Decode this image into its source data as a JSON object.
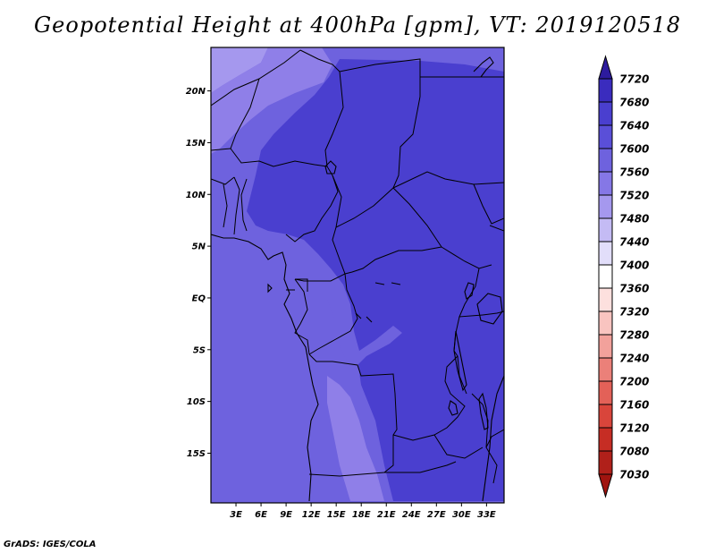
{
  "title": "Geopotential Height at 400hPa [gpm], VT: 2019120518",
  "credit": "GrADS: IGES/COLA",
  "map": {
    "lat_labels": [
      {
        "label": "20N",
        "lat": 20
      },
      {
        "label": "15N",
        "lat": 15
      },
      {
        "label": "10N",
        "lat": 10
      },
      {
        "label": "5N",
        "lat": 5
      },
      {
        "label": "EQ",
        "lat": 0
      },
      {
        "label": "5S",
        "lat": -5
      },
      {
        "label": "10S",
        "lat": -10
      },
      {
        "label": "15S",
        "lat": -15
      }
    ],
    "lon_labels": [
      {
        "label": "3E",
        "lon": 3
      },
      {
        "label": "6E",
        "lon": 6
      },
      {
        "label": "9E",
        "lon": 9
      },
      {
        "label": "12E",
        "lon": 12
      },
      {
        "label": "15E",
        "lon": 15
      },
      {
        "label": "18E",
        "lon": 18
      },
      {
        "label": "21E",
        "lon": 21
      },
      {
        "label": "24E",
        "lon": 24
      },
      {
        "label": "27E",
        "lon": 27
      },
      {
        "label": "30E",
        "lon": 30
      },
      {
        "label": "33E",
        "lon": 33
      }
    ],
    "colors": {
      "base": "#6e62de",
      "region_nigeria": "#4a3fcf",
      "region_central": "#4a3fcf",
      "region_east": "#4a3fcf",
      "region_congo": "#4a3fcf",
      "region_sw_light": "#8f7fe8",
      "region_nw_lightest": "#a598ee",
      "border": "#000000"
    }
  },
  "colorbar": {
    "levels": [
      "7720",
      "7680",
      "7640",
      "7600",
      "7560",
      "7520",
      "7480",
      "7440",
      "7400",
      "7360",
      "7320",
      "7280",
      "7240",
      "7200",
      "7160",
      "7120",
      "7080",
      "7030"
    ],
    "colors": [
      "#2d1b9e",
      "#3a2cbe",
      "#4a3fcf",
      "#5a4fd8",
      "#6e62de",
      "#8577e6",
      "#a598ee",
      "#c4bbf4",
      "#e2defa",
      "#ffffff",
      "#fde0de",
      "#f9c4c0",
      "#f2a19b",
      "#eb8079",
      "#e36158",
      "#d9453b",
      "#c62d24",
      "#b0201a",
      "#a0140f"
    ]
  }
}
